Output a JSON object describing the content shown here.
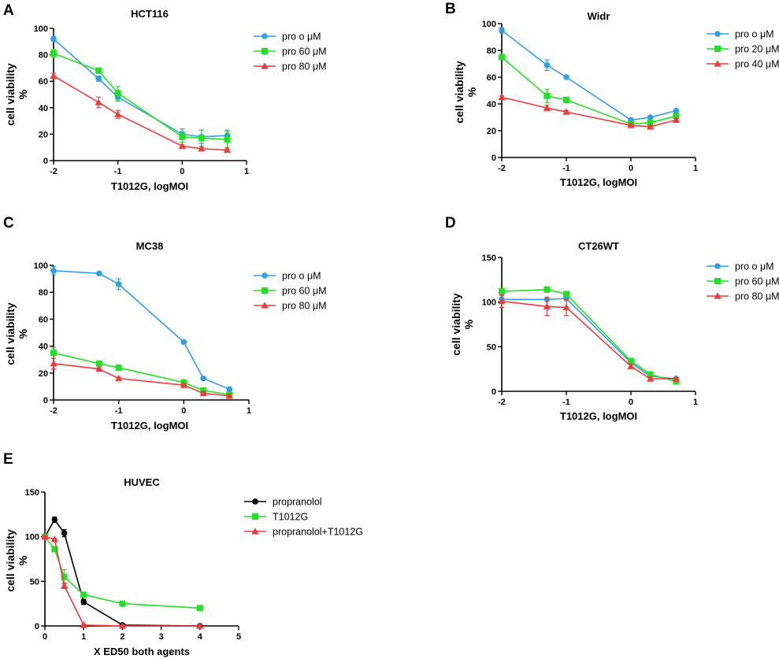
{
  "figure": {
    "panel_letters": [
      "A",
      "B",
      "C",
      "D",
      "E"
    ]
  },
  "chart_data": [
    {
      "letter": "A",
      "type": "line",
      "title": "HCT116",
      "xlabel": "T1012G, logMOI",
      "ylabel_line1": "cell viability",
      "ylabel_line2": "%",
      "xlim": [
        -2,
        1
      ],
      "ylim": [
        0,
        100
      ],
      "xticks": [
        -2,
        -1,
        0,
        1
      ],
      "yticks": [
        0,
        20,
        40,
        60,
        80,
        100
      ],
      "x": [
        -2,
        -1.3,
        -1,
        0,
        0.3,
        0.7
      ],
      "series": [
        {
          "name": "pro o μM",
          "color": "#2f9fe6",
          "marker": "circle",
          "values": [
            92,
            62,
            48,
            20,
            18,
            19
          ],
          "errors": [
            2,
            2,
            3,
            4,
            5,
            4
          ]
        },
        {
          "name": "pro 60 μM",
          "color": "#22e022",
          "marker": "square",
          "values": [
            81,
            68,
            51,
            18,
            17,
            16
          ],
          "errors": [
            3,
            2,
            5,
            4,
            6,
            6
          ]
        },
        {
          "name": "pro 80 μM",
          "color": "#ee3b3b",
          "marker": "triangle",
          "values": [
            64,
            44,
            35,
            11,
            9,
            8
          ],
          "errors": [
            2,
            4,
            3,
            1,
            1,
            1
          ]
        }
      ]
    },
    {
      "letter": "B",
      "type": "line",
      "title": "Widr",
      "xlabel": "T1012G, logMOI",
      "ylabel_line1": "cell viability",
      "ylabel_line2": "%",
      "xlim": [
        -2,
        1
      ],
      "ylim": [
        0,
        100
      ],
      "xticks": [
        -2,
        -1,
        0,
        1
      ],
      "yticks": [
        0,
        20,
        40,
        60,
        80,
        100
      ],
      "x": [
        -2,
        -1.3,
        -1,
        0,
        0.3,
        0.7
      ],
      "series": [
        {
          "name": "pro o μM",
          "color": "#2f9fe6",
          "marker": "circle",
          "values": [
            95,
            69,
            60,
            28,
            30,
            35
          ],
          "errors": [
            2,
            4,
            1,
            1,
            1,
            1
          ]
        },
        {
          "name": "pro 20 μM",
          "color": "#22e022",
          "marker": "square",
          "values": [
            75,
            46,
            43,
            25,
            26,
            31
          ],
          "errors": [
            2,
            5,
            2,
            1,
            1,
            2
          ]
        },
        {
          "name": "pro 40 μM",
          "color": "#ee3b3b",
          "marker": "triangle",
          "values": [
            45,
            37,
            34,
            24,
            23,
            28
          ],
          "errors": [
            1,
            2,
            1,
            1,
            1,
            1
          ]
        }
      ]
    },
    {
      "letter": "C",
      "type": "line",
      "title": "MC38",
      "xlabel": "T1012G, logMOI",
      "ylabel_line1": "cell viability",
      "ylabel_line2": "%",
      "xlim": [
        -2,
        1
      ],
      "ylim": [
        0,
        100
      ],
      "xticks": [
        -2,
        -1,
        0,
        1
      ],
      "yticks": [
        0,
        20,
        40,
        60,
        80,
        100
      ],
      "x": [
        -2,
        -1.3,
        -1,
        0,
        0.3,
        0.7
      ],
      "series": [
        {
          "name": "pro o μM",
          "color": "#2f9fe6",
          "marker": "circle",
          "values": [
            96,
            94,
            86,
            43,
            16,
            8
          ],
          "errors": [
            3,
            1,
            4,
            1,
            1,
            1
          ]
        },
        {
          "name": "pro 60 μM",
          "color": "#22e022",
          "marker": "square",
          "values": [
            35,
            27,
            24,
            13,
            7,
            4
          ],
          "errors": [
            4,
            1,
            1,
            1,
            1,
            1
          ]
        },
        {
          "name": "pro 80 μM",
          "color": "#ee3b3b",
          "marker": "triangle",
          "values": [
            27,
            23,
            16,
            11,
            5,
            3
          ],
          "errors": [
            4,
            1,
            1,
            1,
            1,
            1
          ]
        }
      ]
    },
    {
      "letter": "D",
      "type": "line",
      "title": "CT26WT",
      "xlabel": "T1012G, logMOI",
      "ylabel_line1": "cell viability",
      "ylabel_line2": "%",
      "xlim": [
        -2,
        1
      ],
      "ylim": [
        0,
        150
      ],
      "xticks": [
        -2,
        -1,
        0,
        1
      ],
      "yticks": [
        0,
        50,
        100,
        150
      ],
      "x": [
        -2,
        -1.3,
        -1,
        0,
        0.3,
        0.7
      ],
      "series": [
        {
          "name": "pro o μM",
          "color": "#2f9fe6",
          "marker": "circle",
          "values": [
            103,
            103,
            104,
            32,
            17,
            14
          ],
          "errors": [
            4,
            2,
            2,
            2,
            2,
            1
          ]
        },
        {
          "name": "pro 60 μM",
          "color": "#22e022",
          "marker": "square",
          "values": [
            112,
            114,
            109,
            34,
            19,
            11
          ],
          "errors": [
            3,
            3,
            2,
            2,
            3,
            1
          ]
        },
        {
          "name": "pro 80 μM",
          "color": "#ee3b3b",
          "marker": "triangle",
          "values": [
            101,
            95,
            94,
            28,
            14,
            14
          ],
          "errors": [
            7,
            10,
            9,
            2,
            2,
            1
          ]
        }
      ]
    },
    {
      "letter": "E",
      "type": "line",
      "title": "HUVEC",
      "xlabel": "X ED50 both agents",
      "ylabel_line1": "cell viability",
      "ylabel_line2": "%",
      "xlim": [
        0,
        5
      ],
      "ylim": [
        0,
        150
      ],
      "xticks": [
        0,
        1,
        2,
        3,
        4,
        5
      ],
      "yticks": [
        0,
        50,
        100,
        150
      ],
      "x": [
        0,
        0.25,
        0.5,
        1,
        2,
        4
      ],
      "series": [
        {
          "name": "propranolol",
          "color": "#000000",
          "marker": "circle",
          "values": [
            100,
            119,
            104,
            27,
            1,
            0
          ],
          "errors": [
            1,
            3,
            4,
            3,
            1,
            1
          ]
        },
        {
          "name": "T1012G",
          "color": "#22e022",
          "marker": "square",
          "values": [
            100,
            86,
            55,
            35,
            25,
            20
          ],
          "errors": [
            1,
            2,
            8,
            1,
            1,
            1
          ]
        },
        {
          "name": "propranolol+T1012G",
          "color": "#ee3b3b",
          "marker": "triangle",
          "values": [
            100,
            97,
            45,
            1,
            0,
            0
          ],
          "errors": [
            1,
            1,
            3,
            1,
            1,
            1
          ]
        }
      ]
    }
  ]
}
